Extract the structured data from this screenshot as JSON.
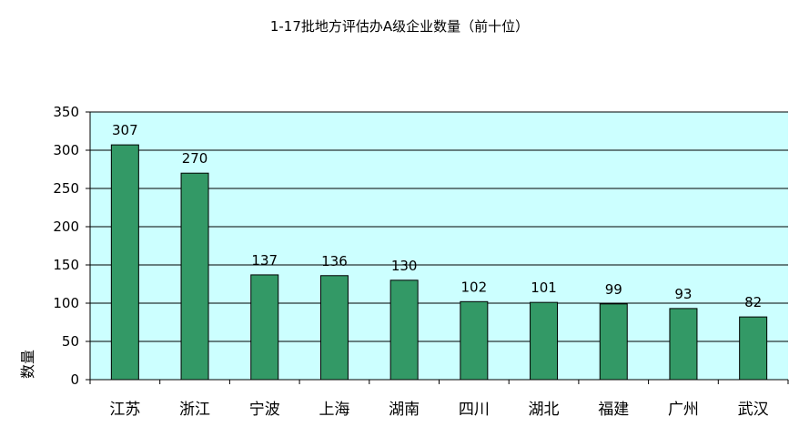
{
  "chart_data": {
    "type": "bar",
    "title": "1-17批地方评估办A级企业数量（前十位）",
    "xlabel": "",
    "ylabel": "数量",
    "categories": [
      "江苏",
      "浙江",
      "宁波",
      "上海",
      "湖南",
      "四川",
      "湖北",
      "福建",
      "广州",
      "武汉"
    ],
    "values": [
      307,
      270,
      137,
      136,
      130,
      102,
      101,
      99,
      93,
      82
    ],
    "ylim": [
      0,
      350
    ],
    "yticks": [
      "0",
      "50",
      "100",
      "150",
      "200",
      "250",
      "300",
      "350"
    ],
    "grid": true,
    "legend": "none",
    "colors": {
      "bar": "#339966",
      "plot_background": "#ccffff"
    }
  }
}
